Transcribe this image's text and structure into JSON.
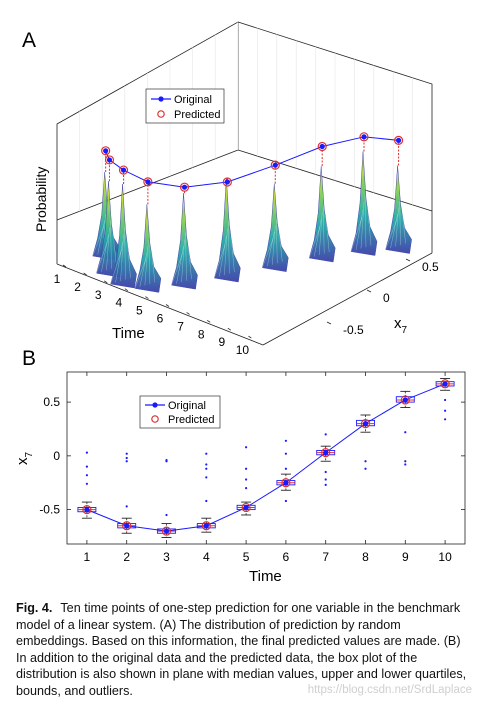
{
  "panels": {
    "a": {
      "label": "A",
      "zlabel": "Probability",
      "xlabel": "Time",
      "ylabel": "x",
      "ylabel_sub": "7",
      "legend": [
        "Original",
        "Predicted"
      ]
    },
    "b": {
      "label": "B",
      "xlabel": "Time",
      "ylabel": "x",
      "ylabel_sub": "7",
      "legend": [
        "Original",
        "Predicted"
      ]
    }
  },
  "caption": {
    "label": "Fig. 4.",
    "text": "Ten time points of one-step prediction for one variable in the benchmark model of a linear system. (A) The distribution of prediction by random embeddings. Based on this information, the final predicted values are made. (B) In addition to the original data and the predicted data, the box plot of the distribution is also shown in plane with median values, upper and lower quartiles, bounds, and outliers."
  },
  "watermark": "https://blog.csdn.net/SrdLaplace",
  "colors": {
    "original": "#1a1aff",
    "predicted": "#e03030",
    "box": "#1a1aff",
    "outlier": "#1a1aff",
    "median": "#e03030",
    "density_high": "#f2e21c",
    "density_low": "#3b3fa8"
  },
  "chart_data": [
    {
      "type": "3d-density",
      "panel": "A",
      "x": [
        1,
        2,
        3,
        4,
        5,
        6,
        7,
        8,
        9,
        10
      ],
      "xticks": [
        1,
        2,
        3,
        4,
        5,
        6,
        7,
        8,
        9,
        10
      ],
      "yticks": [
        -0.5,
        0,
        0.5
      ],
      "series": [
        {
          "name": "Original",
          "values": [
            -0.5,
            -0.65,
            -0.7,
            -0.65,
            -0.48,
            -0.25,
            0.03,
            0.3,
            0.52,
            0.67
          ]
        },
        {
          "name": "Predicted",
          "values": [
            -0.5,
            -0.65,
            -0.7,
            -0.65,
            -0.48,
            -0.25,
            0.03,
            0.3,
            0.52,
            0.67
          ]
        }
      ]
    },
    {
      "type": "box",
      "panel": "B",
      "x": [
        1,
        2,
        3,
        4,
        5,
        6,
        7,
        8,
        9,
        10
      ],
      "xticks": [
        1,
        2,
        3,
        4,
        5,
        6,
        7,
        8,
        9,
        10
      ],
      "yticks": [
        -0.5,
        0,
        0.5
      ],
      "xlim": [
        0.5,
        10.5
      ],
      "ylim": [
        -0.82,
        0.78
      ],
      "series": [
        {
          "name": "Original",
          "values": [
            -0.5,
            -0.65,
            -0.7,
            -0.65,
            -0.48,
            -0.25,
            0.03,
            0.3,
            0.52,
            0.67
          ]
        },
        {
          "name": "Predicted",
          "values": [
            -0.5,
            -0.65,
            -0.7,
            -0.65,
            -0.48,
            -0.25,
            0.03,
            0.3,
            0.52,
            0.67
          ]
        }
      ],
      "boxes": [
        {
          "q1": -0.52,
          "median": -0.5,
          "q3": -0.48,
          "whisker_low": -0.58,
          "whisker_high": -0.43,
          "outliers": [
            0.03,
            -0.1,
            -0.18,
            -0.26
          ]
        },
        {
          "q1": -0.67,
          "median": -0.65,
          "q3": -0.63,
          "whisker_low": -0.72,
          "whisker_high": -0.58,
          "outliers": [
            0.02,
            -0.02,
            -0.05,
            -0.47
          ]
        },
        {
          "q1": -0.72,
          "median": -0.7,
          "q3": -0.68,
          "whisker_low": -0.76,
          "whisker_high": -0.63,
          "outliers": [
            -0.04,
            -0.05,
            -0.55
          ]
        },
        {
          "q1": -0.67,
          "median": -0.65,
          "q3": -0.63,
          "whisker_low": -0.71,
          "whisker_high": -0.58,
          "outliers": [
            0.02,
            -0.08,
            -0.12,
            -0.2,
            -0.42
          ]
        },
        {
          "q1": -0.5,
          "median": -0.48,
          "q3": -0.46,
          "whisker_low": -0.55,
          "whisker_high": -0.43,
          "outliers": [
            0.08,
            -0.12,
            -0.22,
            -0.3
          ]
        },
        {
          "q1": -0.27,
          "median": -0.25,
          "q3": -0.23,
          "whisker_low": -0.32,
          "whisker_high": -0.17,
          "outliers": [
            0.14,
            0.02,
            -0.12,
            -0.42
          ]
        },
        {
          "q1": 0.01,
          "median": 0.03,
          "q3": 0.05,
          "whisker_low": -0.05,
          "whisker_high": 0.09,
          "outliers": [
            0.2,
            -0.15,
            -0.22,
            -0.27
          ]
        },
        {
          "q1": 0.28,
          "median": 0.3,
          "q3": 0.33,
          "whisker_low": 0.22,
          "whisker_high": 0.38,
          "outliers": [
            -0.05,
            -0.12
          ]
        },
        {
          "q1": 0.5,
          "median": 0.52,
          "q3": 0.55,
          "whisker_low": 0.45,
          "whisker_high": 0.6,
          "outliers": [
            0.22,
            -0.05,
            -0.08
          ]
        },
        {
          "q1": 0.65,
          "median": 0.67,
          "q3": 0.69,
          "whisker_low": 0.61,
          "whisker_high": 0.72,
          "outliers": [
            0.52,
            0.42,
            0.34
          ]
        }
      ]
    }
  ]
}
